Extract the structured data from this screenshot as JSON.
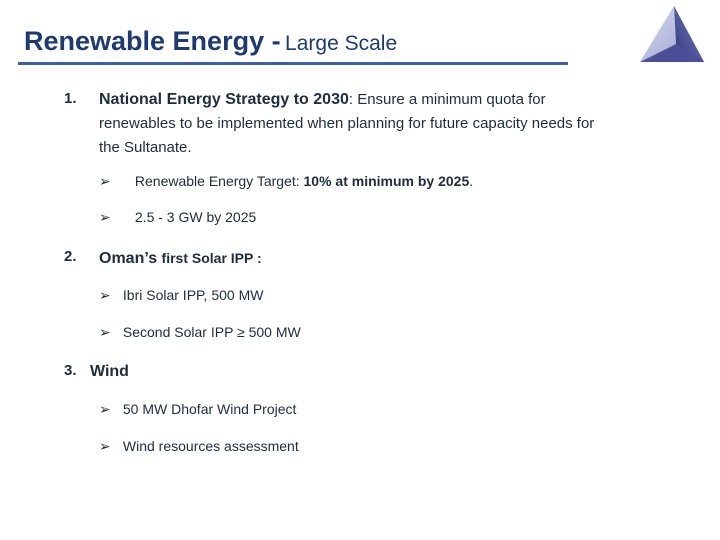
{
  "title": {
    "main": "Renewable Energy -",
    "sub": "Large Scale"
  },
  "logo_icon": "triangle-logo-icon",
  "arrow_icon": "➢",
  "section1": {
    "number": "1.",
    "heading": "National Energy Strategy to 2030",
    "text": ": Ensure a minimum quota for",
    "text_line2": "renewables to be implemented when planning for future capacity needs for",
    "text_line3": "the Sultanate.",
    "bullet1_prefix": "Renewable Energy Target: ",
    "bullet1_bold": "10% at minimum by 2025",
    "bullet1_suffix": ".",
    "bullet2": "2.5 - 3 GW by 2025"
  },
  "section2": {
    "number": "2.",
    "heading": "Oman’s ",
    "heading_small": "first Solar IPP :",
    "bullets": [
      "Ibri Solar IPP, 500 MW",
      "Second Solar IPP ≥ 500 MW"
    ]
  },
  "section3": {
    "number": "3.",
    "heading": "Wind",
    "bullets": [
      "50 MW Dhofar Wind Project",
      "Wind resources assessment"
    ]
  }
}
